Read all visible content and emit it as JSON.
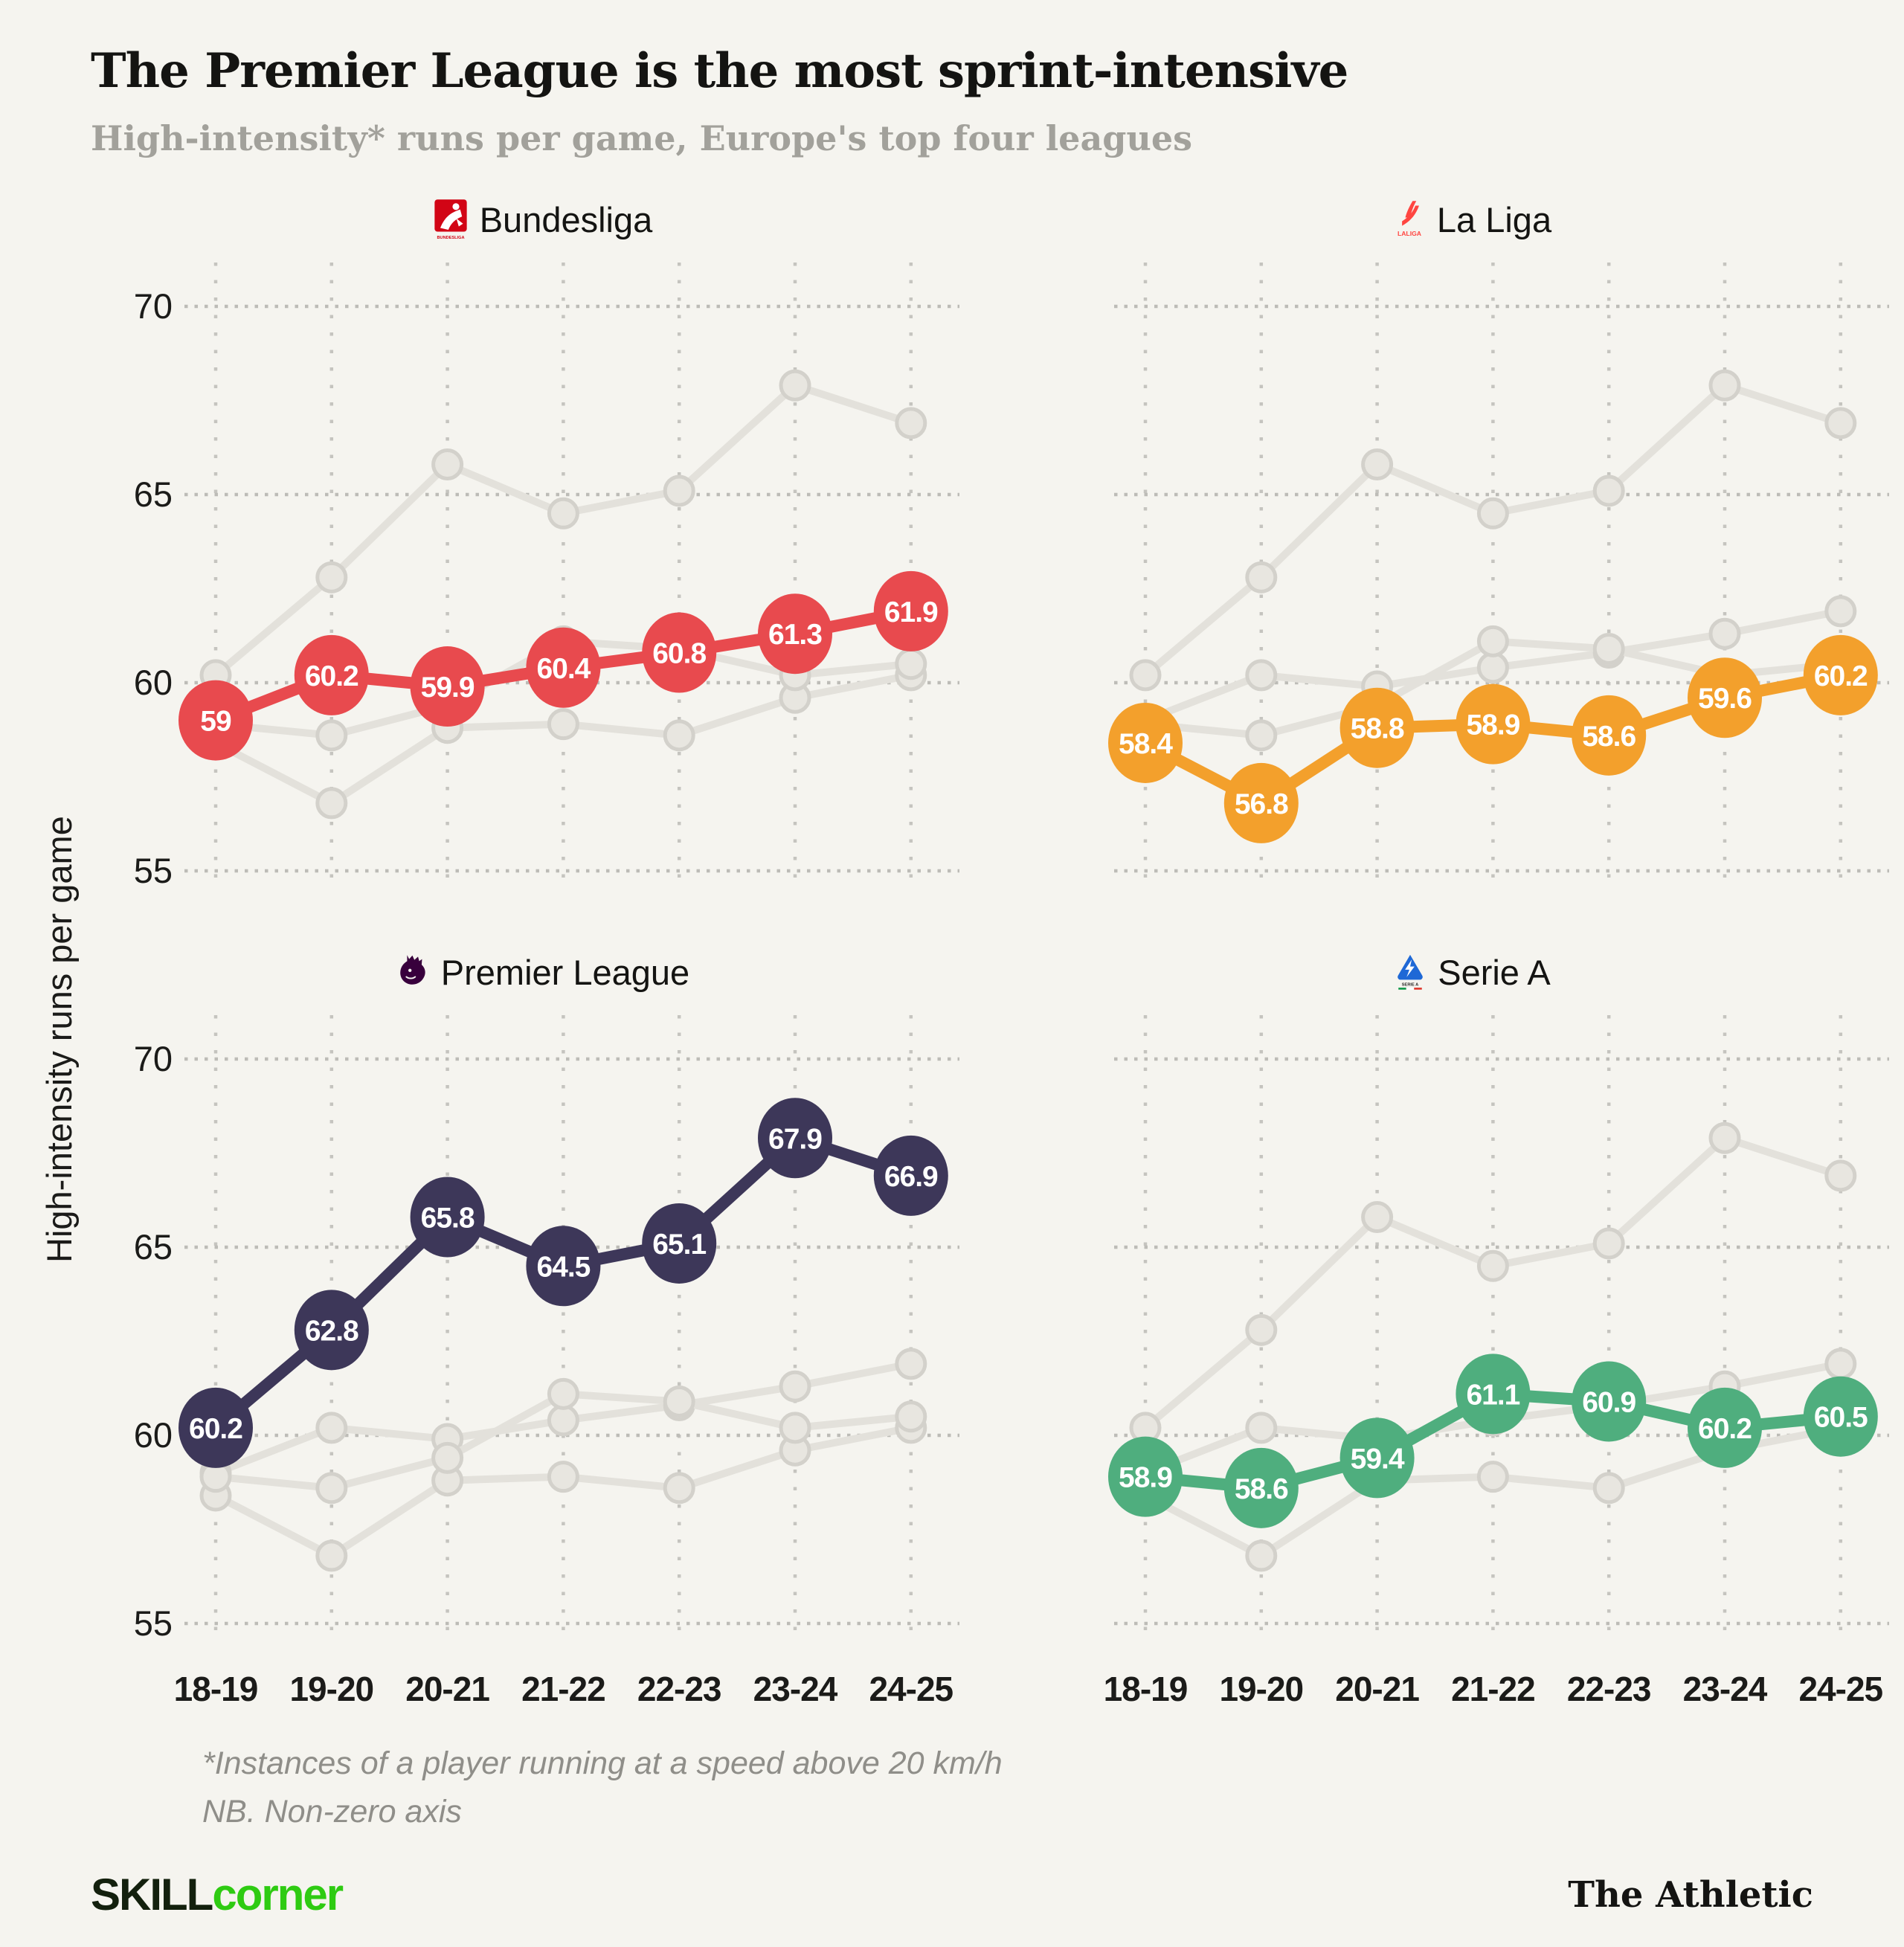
{
  "header": {
    "title": "The Premier League is the most sprint-intensive",
    "subtitle": "High-intensity* runs per game, Europe's top four leagues"
  },
  "chart_data": {
    "type": "line",
    "categories": [
      "18-19",
      "19-20",
      "20-21",
      "21-22",
      "22-23",
      "23-24",
      "24-25"
    ],
    "ylabel": "High-intensity runs per game",
    "ylim": [
      53.5,
      71.5
    ],
    "yticks": [
      70,
      65,
      60,
      55
    ],
    "grid": "dotted",
    "legend_position": "panel-headers",
    "background_series_style": {
      "line_color": "#e3e1db",
      "marker_fill": "#e8e6e0",
      "marker_stroke": "#d3d1cb"
    },
    "series": [
      {
        "name": "Bundesliga",
        "color": "#e84a4e",
        "values": [
          59,
          60.2,
          59.9,
          60.4,
          60.8,
          61.3,
          61.9
        ]
      },
      {
        "name": "La Liga",
        "color": "#f3a02c",
        "values": [
          58.4,
          56.8,
          58.8,
          58.9,
          58.6,
          59.6,
          60.2
        ]
      },
      {
        "name": "Premier League",
        "color": "#3d3759",
        "values": [
          60.2,
          62.8,
          65.8,
          64.5,
          65.1,
          67.9,
          66.9
        ]
      },
      {
        "name": "Serie A",
        "color": "#4fae7e",
        "values": [
          58.9,
          58.6,
          59.4,
          61.1,
          60.9,
          60.2,
          60.5
        ]
      }
    ],
    "panels": [
      {
        "label": "Bundesliga",
        "series": "Bundesliga",
        "logo": "bundesliga-logo",
        "show_y_ticks": true,
        "show_x_labels": false
      },
      {
        "label": "La Liga",
        "series": "La Liga",
        "logo": "laliga-logo",
        "show_y_ticks": false,
        "show_x_labels": false
      },
      {
        "label": "Premier League",
        "series": "Premier League",
        "logo": "premier-league-logo",
        "show_y_ticks": true,
        "show_x_labels": true
      },
      {
        "label": "Serie A",
        "series": "Serie A",
        "logo": "serie-a-logo",
        "show_y_ticks": false,
        "show_x_labels": true
      }
    ]
  },
  "footnotes": {
    "line1": "*Instances of a player running at a speed above 20 km/h",
    "line2": "NB. Non-zero axis"
  },
  "branding": {
    "skill": "SKILL",
    "corner": "corner",
    "athletic": "The Athletic"
  }
}
